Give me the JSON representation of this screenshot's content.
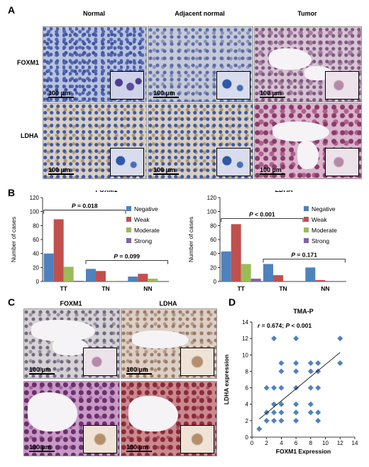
{
  "panel_labels": {
    "a": "A",
    "b": "B",
    "c": "C",
    "d": "D"
  },
  "panel_a": {
    "columns": [
      "Normal",
      "Adjacent normal",
      "Tumor"
    ],
    "rows": [
      "FOXM1",
      "LDHA"
    ],
    "scale_bar": "100 µm"
  },
  "panel_c": {
    "columns": [
      "FOXM1",
      "LDHA"
    ],
    "scale_bar": "100 µm"
  },
  "colors": {
    "negative": "#4f81bd",
    "weak": "#c0504d",
    "moderate": "#9bbb59",
    "strong": "#8064a2",
    "scatter": "#4f81bd"
  },
  "chart_data": [
    {
      "type": "bar",
      "title": "FOXM1",
      "ylabel": "Number of cases",
      "ylim": [
        0,
        120
      ],
      "yticks": [
        "0",
        "20",
        "40",
        "60",
        "80",
        "100",
        "120"
      ],
      "categories": [
        "TT",
        "TN",
        "NN"
      ],
      "series": [
        {
          "name": "Negative",
          "values": [
            40,
            18,
            7
          ]
        },
        {
          "name": "Weak",
          "values": [
            89,
            15,
            11
          ]
        },
        {
          "name": "Moderate",
          "values": [
            21,
            1,
            4
          ]
        },
        {
          "name": "Strong",
          "values": [
            1,
            0,
            0
          ]
        }
      ],
      "annotations": [
        {
          "prefix": "P",
          "text": " = 0.018"
        },
        {
          "prefix": "P",
          "text": " = 0.099"
        }
      ],
      "legend": "right"
    },
    {
      "type": "bar",
      "title": "LDHA",
      "ylabel": "Number of cases",
      "ylim": [
        0,
        120
      ],
      "yticks": [
        "0",
        "20",
        "40",
        "60",
        "80",
        "100",
        "120"
      ],
      "categories": [
        "TT",
        "TN",
        "NN"
      ],
      "series": [
        {
          "name": "Negative",
          "values": [
            43,
            25,
            20
          ]
        },
        {
          "name": "Weak",
          "values": [
            82,
            9,
            2
          ]
        },
        {
          "name": "Moderate",
          "values": [
            25,
            0,
            0
          ]
        },
        {
          "name": "Strong",
          "values": [
            4,
            0,
            0
          ]
        }
      ],
      "annotations": [
        {
          "prefix": "P",
          "text": " < 0.001"
        },
        {
          "prefix": "P",
          "text": " = 0.171"
        }
      ],
      "legend": "right"
    },
    {
      "type": "scatter",
      "title": "TMA-P",
      "annotation": {
        "prefix": "r",
        "text": " = 0.674; ",
        "prefix2": "P",
        "text2": " < 0.001"
      },
      "xlabel": "FOXM1 Expression",
      "ylabel": "LDHA expression",
      "xlim": [
        0,
        14
      ],
      "ylim": [
        0,
        14
      ],
      "xticks": [
        "0",
        "2",
        "4",
        "6",
        "8",
        "10",
        "12",
        "14"
      ],
      "yticks": [
        "0",
        "2",
        "4",
        "6",
        "8",
        "10",
        "12",
        "14"
      ],
      "points": [
        [
          1,
          1
        ],
        [
          2,
          2
        ],
        [
          2,
          6
        ],
        [
          2,
          3
        ],
        [
          3,
          3
        ],
        [
          3,
          4
        ],
        [
          3,
          6
        ],
        [
          3,
          2
        ],
        [
          3,
          12
        ],
        [
          4,
          2
        ],
        [
          4,
          3
        ],
        [
          4,
          4
        ],
        [
          4,
          6
        ],
        [
          4,
          9
        ],
        [
          4,
          8
        ],
        [
          6,
          12
        ],
        [
          6,
          9
        ],
        [
          6,
          8
        ],
        [
          6,
          6
        ],
        [
          6,
          4
        ],
        [
          6,
          3
        ],
        [
          6,
          2
        ],
        [
          8,
          9
        ],
        [
          8,
          8
        ],
        [
          8,
          6
        ],
        [
          8,
          4
        ],
        [
          8,
          3
        ],
        [
          9,
          9
        ],
        [
          9,
          8
        ],
        [
          9,
          6
        ],
        [
          9,
          3
        ],
        [
          12,
          12
        ],
        [
          12,
          9
        ],
        [
          9,
          2
        ]
      ],
      "fit": [
        [
          1,
          2.2
        ],
        [
          12,
          10.3
        ]
      ]
    }
  ]
}
